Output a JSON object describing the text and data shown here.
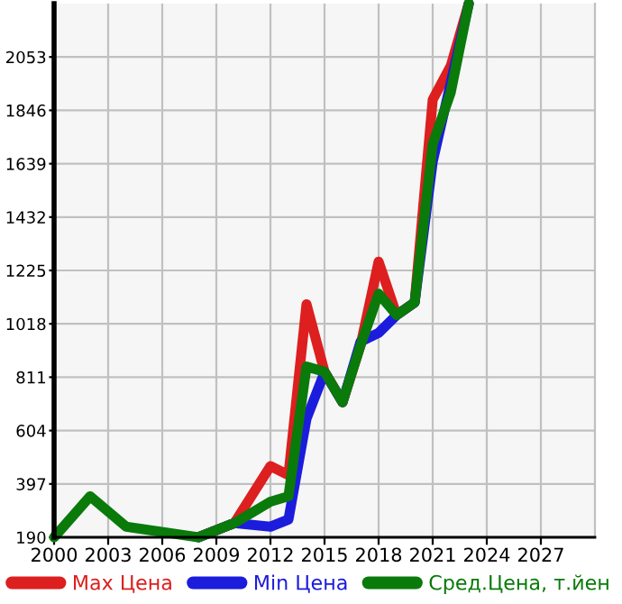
{
  "chart_data": {
    "type": "line",
    "xlim": [
      2000,
      2030
    ],
    "ylim": [
      190,
      2260
    ],
    "xticks": [
      2000,
      2003,
      2006,
      2009,
      2012,
      2015,
      2018,
      2021,
      2024,
      2027
    ],
    "yticks": [
      190,
      397,
      604,
      811,
      1018,
      1225,
      1432,
      1639,
      1846,
      2053
    ],
    "grid": true,
    "legend": "bottom",
    "marker": "none",
    "line_style": "solid",
    "series": [
      {
        "name": "Max Цена",
        "color": "#dd1f1f",
        "x": [
          2008,
          2010,
          2012,
          2013,
          2014,
          2015,
          2016,
          2017,
          2018,
          2019,
          2020,
          2021,
          2022,
          2023
        ],
        "values": [
          190,
          245,
          466,
          431,
          1094,
          832,
          714,
          935,
          1259,
          1052,
          1101,
          1887,
          2018,
          2260
        ]
      },
      {
        "name": "Min Цена",
        "color": "#1c1cdd",
        "x": [
          2008,
          2010,
          2012,
          2013,
          2014,
          2015,
          2016,
          2017,
          2018,
          2019,
          2020,
          2021,
          2023
        ],
        "values": [
          190,
          245,
          231,
          259,
          650,
          830,
          714,
          949,
          983,
          1052,
          1101,
          1646,
          2260
        ]
      },
      {
        "name": "Сред.Цена, т.йен",
        "color": "#0a7a0a",
        "x": [
          2000,
          2002,
          2004,
          2008,
          2010,
          2012,
          2013,
          2014,
          2015,
          2016,
          2017,
          2018,
          2019,
          2020,
          2021,
          2022,
          2023
        ],
        "values": [
          190,
          349,
          231,
          190,
          245,
          328,
          349,
          852,
          832,
          714,
          935,
          1135,
          1052,
          1101,
          1715,
          1915,
          2260
        ]
      }
    ]
  }
}
